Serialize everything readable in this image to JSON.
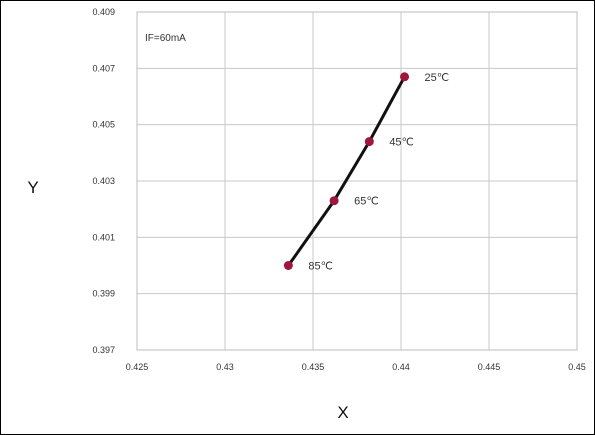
{
  "chart_data": {
    "type": "line",
    "title": "",
    "xlabel": "X",
    "ylabel": "Y",
    "annotation": "IF=60mA",
    "xlim": [
      0.425,
      0.45
    ],
    "ylim": [
      0.397,
      0.409
    ],
    "x_ticks": [
      "0.425",
      "0.43",
      "0.435",
      "0.44",
      "0.445",
      "0.45"
    ],
    "y_ticks": [
      "0.397",
      "0.399",
      "0.401",
      "0.403",
      "0.405",
      "0.407",
      "0.409"
    ],
    "grid": true,
    "legend": "none",
    "series": [
      {
        "color": "#111111",
        "marker_color": "#a0163c",
        "points": [
          {
            "x": 0.4336,
            "y": 0.4,
            "label": "85℃"
          },
          {
            "x": 0.4362,
            "y": 0.4023,
            "label": "65℃"
          },
          {
            "x": 0.4382,
            "y": 0.4044,
            "label": "45℃"
          },
          {
            "x": 0.4402,
            "y": 0.4067,
            "label": "25℃"
          }
        ]
      }
    ]
  }
}
